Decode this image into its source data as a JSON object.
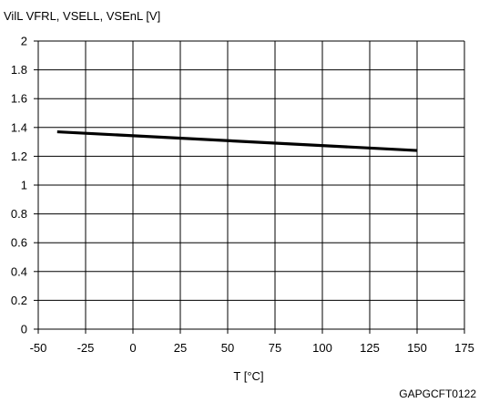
{
  "chart_data": {
    "type": "line",
    "ylabel": "VilL VFRL, VSELL, VSEnL [V]",
    "xlabel": "T [°C]",
    "x_ticks": [
      "-50",
      "-25",
      "0",
      "25",
      "50",
      "75",
      "100",
      "125",
      "150",
      "175"
    ],
    "y_ticks": [
      "0",
      "0.2",
      "0.4",
      "0.6",
      "0.8",
      "1",
      "1.2",
      "1.4",
      "1.6",
      "1.8",
      "2"
    ],
    "xlim": [
      -50,
      175
    ],
    "ylim": [
      0,
      2
    ],
    "grid": true,
    "series": [
      {
        "x": [
          -40,
          150
        ],
        "y": [
          1.37,
          1.24
        ]
      }
    ],
    "line_color": "#000000"
  },
  "figure_code": "GAPGCFT0122"
}
